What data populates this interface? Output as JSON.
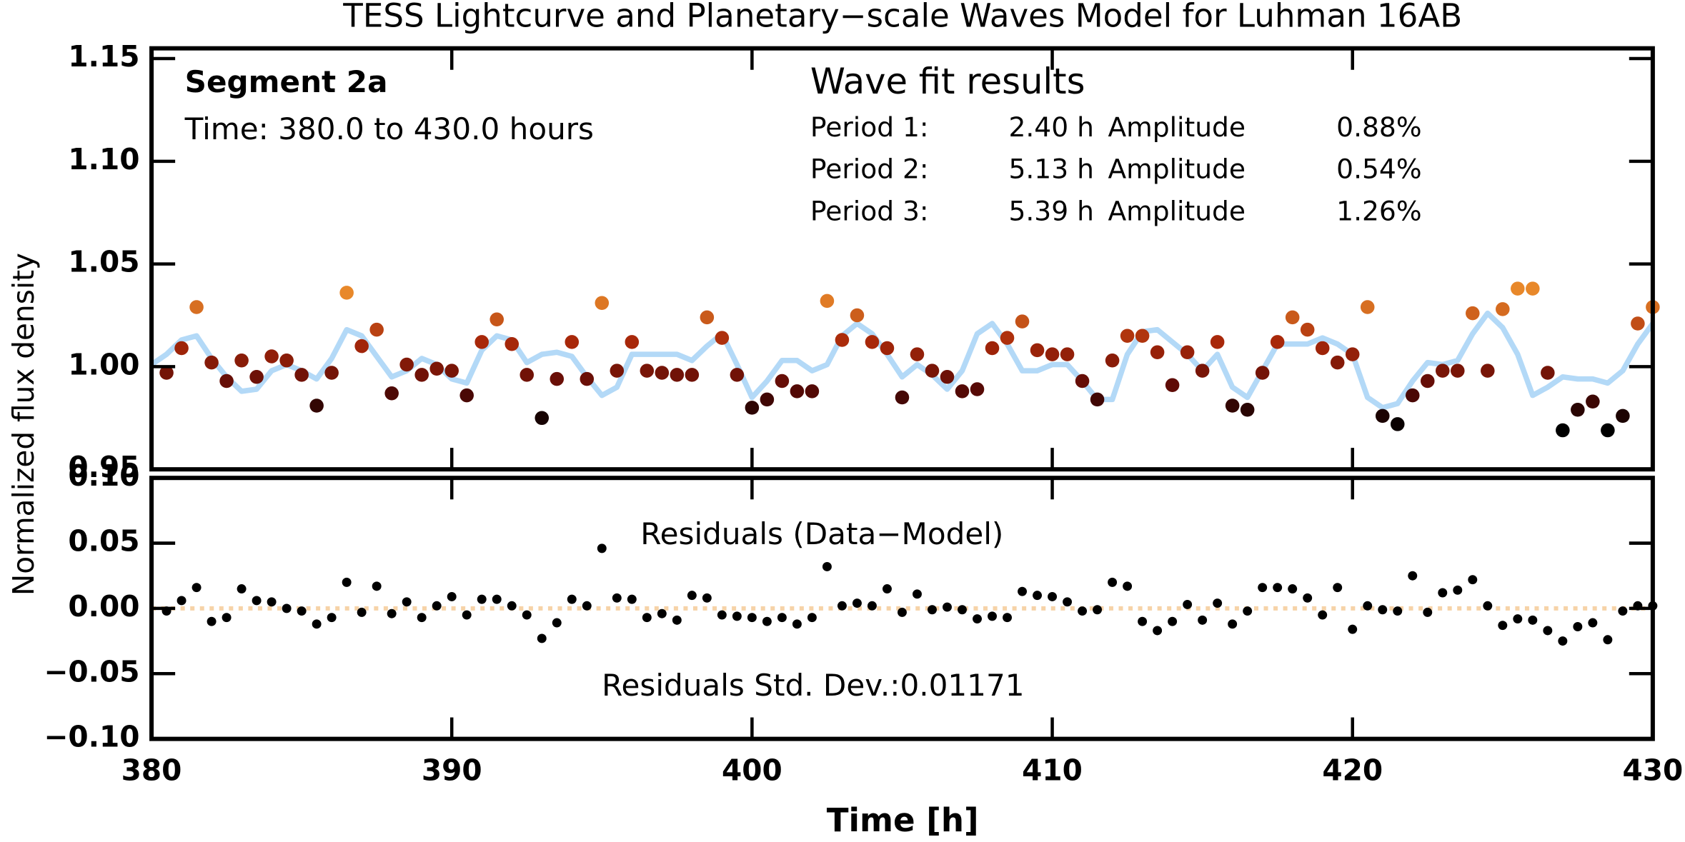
{
  "chart_data": [
    {
      "type": "scatter",
      "title": "TESS Lightcurve and Planetary−scale Waves Model for Luhman 16AB",
      "ylabel": "Normalized flux density",
      "annotations": [
        "Segment 2a",
        "Time: 380.0 to 430.0 hours"
      ],
      "results": {
        "title": "Wave fit results",
        "rows": [
          [
            "Period 1:",
            "2.40 h",
            "Amplitude",
            "0.88%"
          ],
          [
            "Period 2:",
            "5.13 h",
            "Amplitude",
            "0.54%"
          ],
          [
            "Period 3:",
            "5.39 h",
            "Amplitude",
            "1.26%"
          ]
        ]
      },
      "xlim": [
        380,
        430
      ],
      "ylim": [
        0.95,
        1.155
      ],
      "yticks": [
        0.95,
        {
          "value": 1.0,
          "label": "1.00"
        },
        1.05,
        {
          "value": 1.1,
          "label": "1.10"
        },
        1.15
      ],
      "series": [
        {
          "type": "line",
          "color": "#b3d9f7",
          "x": [
            380,
            380.5,
            381,
            381.5,
            382,
            382.5,
            383,
            383.5,
            384,
            384.5,
            385,
            385.5,
            386,
            386.5,
            387,
            387.5,
            388,
            388.5,
            389,
            389.5,
            390,
            390.5,
            391,
            391.5,
            392,
            392.5,
            393,
            393.5,
            394,
            394.5,
            395,
            395.5,
            396,
            396.5,
            397,
            397.5,
            398,
            398.5,
            399,
            399.5,
            400,
            400.5,
            401,
            401.5,
            402,
            402.5,
            403,
            403.5,
            404,
            404.5,
            405,
            405.5,
            406,
            406.5,
            407,
            407.5,
            408,
            408.5,
            409,
            409.5,
            410,
            410.5,
            411,
            411.5,
            412,
            412.5,
            413,
            413.5,
            414,
            414.5,
            415,
            415.5,
            416,
            416.5,
            417,
            417.5,
            418,
            418.5,
            419,
            419.5,
            420,
            420.5,
            421,
            421.5,
            422,
            422.5,
            423,
            423.5,
            424,
            424.5,
            425,
            425.5,
            426,
            426.5,
            427,
            427.5,
            428,
            428.5,
            429,
            429.5,
            430
          ],
          "values": [
            1.001,
            1.006,
            1.013,
            1.015,
            1.004,
            0.995,
            0.988,
            0.989,
            0.998,
            1.001,
            0.998,
            0.994,
            1.004,
            1.018,
            1.015,
            1.005,
            0.995,
            0.998,
            1.004,
            1.001,
            0.994,
            0.992,
            1.008,
            1.015,
            1.013,
            1.002,
            1.006,
            1.007,
            1.005,
            0.995,
            0.986,
            0.99,
            1.006,
            1.006,
            1.006,
            1.006,
            1.003,
            1.01,
            1.016,
            1.001,
            0.985,
            0.993,
            1.003,
            1.003,
            0.998,
            1.001,
            1.015,
            1.021,
            1.016,
            1.006,
            0.995,
            1.001,
            0.996,
            0.989,
            0.998,
            1.016,
            1.021,
            1.011,
            0.998,
            0.998,
            1.001,
            1.001,
            0.993,
            0.984,
            0.984,
            1.006,
            1.017,
            1.018,
            1.012,
            1.006,
            0.998,
            1.006,
            0.99,
            0.985,
            0.998,
            1.011,
            1.011,
            1.011,
            1.014,
            1.011,
            1.006,
            0.985,
            0.98,
            0.982,
            0.993,
            1.002,
            1.001,
            1.003,
            1.016,
            1.026,
            1.019,
            1.006,
            0.986,
            0.99,
            0.995,
            0.994,
            0.994,
            0.992,
            0.998,
            1.011,
            1.021
          ]
        },
        {
          "type": "scatter",
          "color_scale": [
            [
              0.97,
              "#000000"
            ],
            [
              0.99,
              "#5c0a06"
            ],
            [
              1.012,
              "#a8280a"
            ],
            [
              1.035,
              "#e8882a"
            ]
          ],
          "x": [
            380.5,
            381,
            381.5,
            382,
            382.5,
            383,
            383.5,
            384,
            384.5,
            385,
            385.5,
            386,
            386.5,
            387,
            387.5,
            388,
            388.5,
            389,
            389.5,
            390,
            390.5,
            391,
            391.5,
            392,
            392.5,
            393,
            393.5,
            394,
            394.5,
            395,
            395.5,
            396,
            396.5,
            397,
            397.5,
            398,
            398.5,
            399,
            399.5,
            400,
            400.5,
            401,
            401.5,
            402,
            402.5,
            403,
            403.5,
            404,
            404.5,
            405,
            405.5,
            406,
            406.5,
            407,
            407.5,
            408,
            408.5,
            409,
            409.5,
            410,
            410.5,
            411,
            411.5,
            412,
            412.5,
            413,
            413.5,
            414,
            414.5,
            415,
            415.5,
            416,
            416.5,
            417,
            417.5,
            418,
            418.5,
            419,
            419.5,
            420,
            420.5,
            421,
            421.5,
            422,
            422.5,
            423,
            423.5,
            424,
            424.5,
            425,
            425.5,
            426,
            426.5,
            427,
            427.5,
            428,
            428.5,
            429,
            429.5,
            430
          ],
          "values": [
            0.997,
            1.009,
            1.029,
            1.002,
            0.993,
            1.003,
            0.995,
            1.005,
            1.003,
            0.996,
            0.981,
            0.997,
            1.036,
            1.01,
            1.018,
            0.987,
            1.001,
            0.996,
            0.999,
            0.998,
            0.986,
            1.012,
            1.023,
            1.011,
            0.996,
            0.975,
            0.994,
            1.012,
            0.994,
            1.031,
            0.998,
            1.012,
            0.998,
            0.997,
            0.996,
            0.996,
            1.024,
            1.014,
            0.996,
            0.98,
            0.984,
            0.993,
            0.988,
            0.988,
            1.032,
            1.013,
            1.025,
            1.012,
            1.009,
            0.985,
            1.006,
            0.998,
            0.995,
            0.988,
            0.989,
            1.009,
            1.014,
            1.022,
            1.008,
            1.006,
            1.006,
            0.993,
            0.984,
            1.003,
            1.015,
            1.015,
            1.007,
            0.991,
            1.007,
            0.998,
            1.012,
            0.981,
            0.979,
            0.997,
            1.012,
            1.024,
            1.018,
            1.009,
            1.002,
            1.006,
            1.029,
            0.976,
            0.972,
            0.986,
            0.993,
            0.998,
            0.998,
            1.026,
            0.998,
            1.028,
            1.038,
            1.038,
            0.997,
            0.969,
            0.979,
            0.983,
            0.969,
            0.976,
            1.021,
            1.029
          ]
        }
      ]
    },
    {
      "type": "scatter",
      "xlabel": "Time [h]",
      "annotations": [
        "Residuals (Data−Model)",
        "Residuals Std. Dev.:0.01171"
      ],
      "xlim": [
        380,
        430
      ],
      "xticks": [
        380,
        390,
        400,
        410,
        420,
        430
      ],
      "ylim": [
        -0.1,
        0.1
      ],
      "yticks": [
        {
          "value": 0.1,
          "label": "0.10"
        },
        {
          "value": 0.05,
          "label": "0.05"
        },
        {
          "value": 0,
          "label": "0.00"
        },
        {
          "value": -0.05,
          "label": "−0.05"
        },
        {
          "value": -0.1,
          "label": "−0.10"
        }
      ],
      "hline": {
        "value": 0,
        "color": "#f6d3a8",
        "dashed": true
      },
      "series": [
        {
          "type": "scatter",
          "color": "#000000",
          "x": [
            380.5,
            381,
            381.5,
            382,
            382.5,
            383,
            383.5,
            384,
            384.5,
            385,
            385.5,
            386,
            386.5,
            387,
            387.5,
            388,
            388.5,
            389,
            389.5,
            390,
            390.5,
            391,
            391.5,
            392,
            392.5,
            393,
            393.5,
            394,
            394.5,
            395,
            395.5,
            396,
            396.5,
            397,
            397.5,
            398,
            398.5,
            399,
            399.5,
            400,
            400.5,
            401,
            401.5,
            402,
            402.5,
            403,
            403.5,
            404,
            404.5,
            405,
            405.5,
            406,
            406.5,
            407,
            407.5,
            408,
            408.5,
            409,
            409.5,
            410,
            410.5,
            411,
            411.5,
            412,
            412.5,
            413,
            413.5,
            414,
            414.5,
            415,
            415.5,
            416,
            416.5,
            417,
            417.5,
            418,
            418.5,
            419,
            419.5,
            420,
            420.5,
            421,
            421.5,
            422,
            422.5,
            423,
            423.5,
            424,
            424.5,
            425,
            425.5,
            426,
            426.5,
            427,
            427.5,
            428,
            428.5,
            429,
            429.5,
            430
          ],
          "values": [
            -0.002,
            0.006,
            0.016,
            -0.01,
            -0.007,
            0.015,
            0.006,
            0.005,
            0.0,
            -0.002,
            -0.012,
            -0.007,
            0.02,
            -0.003,
            0.017,
            -0.004,
            0.005,
            -0.007,
            0.002,
            0.009,
            -0.005,
            0.007,
            0.007,
            0.002,
            -0.005,
            -0.023,
            -0.011,
            0.007,
            0.002,
            0.046,
            0.008,
            0.007,
            -0.007,
            -0.004,
            -0.009,
            0.01,
            0.008,
            -0.005,
            -0.006,
            -0.007,
            -0.01,
            -0.007,
            -0.012,
            -0.007,
            0.032,
            0.002,
            0.004,
            0.002,
            0.015,
            -0.003,
            0.011,
            -0.001,
            0.001,
            -0.001,
            -0.008,
            -0.006,
            -0.007,
            0.013,
            0.01,
            0.009,
            0.005,
            -0.002,
            -0.001,
            0.02,
            0.017,
            -0.01,
            -0.017,
            -0.01,
            0.003,
            -0.009,
            0.004,
            -0.012,
            -0.002,
            0.016,
            0.016,
            0.015,
            0.008,
            -0.005,
            0.016,
            -0.016,
            0.002,
            -0.001,
            -0.002,
            0.025,
            -0.003,
            0.012,
            0.014,
            0.022,
            0.002,
            -0.013,
            -0.008,
            -0.009,
            -0.017,
            -0.025,
            -0.014,
            -0.011,
            -0.024,
            -0.002,
            0.002,
            0.002
          ]
        }
      ]
    }
  ]
}
